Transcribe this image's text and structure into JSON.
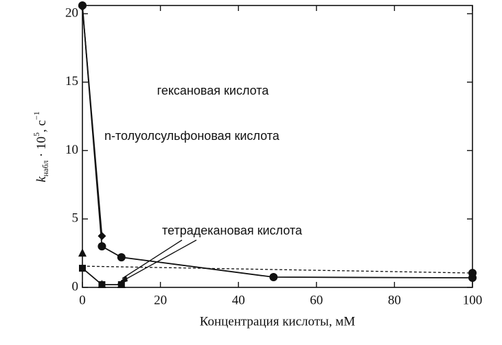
{
  "chart_data": {
    "type": "line",
    "x_label": "Концентрация кислоты, мМ",
    "y_label": {
      "symbol": "k",
      "subscript": "набл",
      "text": " · 10",
      "superscript": "5",
      "unit": ", с",
      "unit_superscript": "−1"
    },
    "annotations": [
      "гексановая кислота",
      "n-толуолсульфоновая кислота",
      "тетрадекановая кислота"
    ],
    "xlim": [
      0,
      100
    ],
    "xticks": [
      0,
      20,
      40,
      60,
      80,
      100
    ],
    "ylim": [
      0,
      20.6
    ],
    "yticks": [
      0,
      5,
      10,
      15,
      20
    ],
    "color": "#111111",
    "series": [
      {
        "marker": "circle",
        "line": "solid",
        "x": [
          0,
          5,
          10,
          49,
          100
        ],
        "values": [
          20.6,
          3.0,
          2.2,
          0.75,
          0.7
        ]
      },
      {
        "marker": "diamond",
        "line": "solid",
        "x": [
          0,
          5
        ],
        "values": [
          20.5,
          3.75
        ]
      },
      {
        "marker": "triangle",
        "line": "none",
        "x": [
          0,
          5,
          10
        ],
        "values": [
          2.5,
          0.2,
          0.2
        ]
      },
      {
        "marker": "square",
        "line": "solid",
        "x": [
          0,
          5,
          10
        ],
        "values": [
          1.4,
          0.2,
          0.2
        ]
      },
      {
        "marker": "none",
        "line": "dashed",
        "x": [
          0,
          100
        ],
        "values": [
          1.55,
          1.05
        ]
      },
      {
        "marker": "circle",
        "line": "none",
        "x": [
          100
        ],
        "values": [
          1.05
        ]
      }
    ]
  }
}
